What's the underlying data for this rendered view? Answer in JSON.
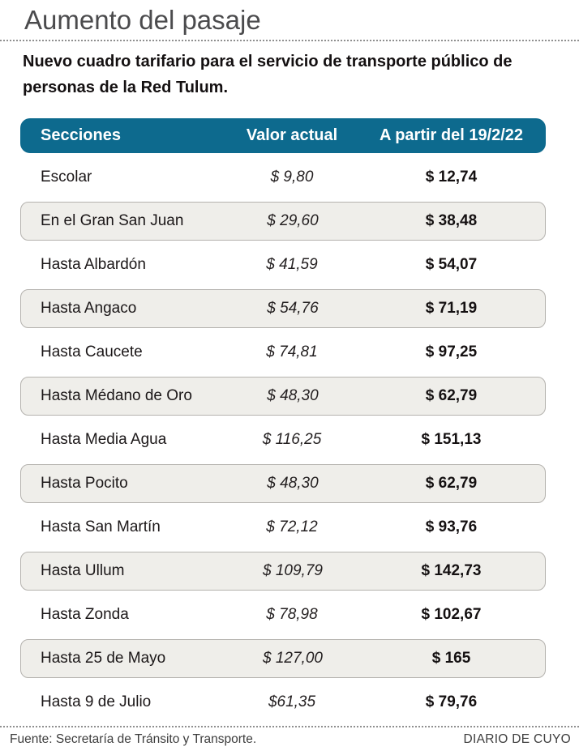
{
  "title": "Aumento del pasaje",
  "subtitle": "Nuevo cuadro tarifario para el servicio de transporte público de personas de la Red Tulum.",
  "colors": {
    "header_bg": "#0d6a8e",
    "alt_row_bg": "#efeeea",
    "alt_row_border": "#b4b2ae",
    "title_color": "#4b4b4d",
    "text_color": "#141011"
  },
  "table": {
    "columns": [
      "Secciones",
      "Valor actual",
      "A partir del 19/2/22"
    ],
    "rows": [
      {
        "seccion": "Escolar",
        "valor_actual": "$ 9,80",
        "a_partir": "$ 12,74"
      },
      {
        "seccion": "En el Gran San Juan",
        "valor_actual": "$ 29,60",
        "a_partir": "$ 38,48"
      },
      {
        "seccion": "Hasta Albardón",
        "valor_actual": "$ 41,59",
        "a_partir": "$ 54,07"
      },
      {
        "seccion": "Hasta Angaco",
        "valor_actual": "$ 54,76",
        "a_partir": "$ 71,19"
      },
      {
        "seccion": "Hasta Caucete",
        "valor_actual": "$ 74,81",
        "a_partir": "$ 97,25"
      },
      {
        "seccion": "Hasta Médano de Oro",
        "valor_actual": "$ 48,30",
        "a_partir": "$ 62,79"
      },
      {
        "seccion": "Hasta Media Agua",
        "valor_actual": "$ 116,25",
        "a_partir": "$ 151,13"
      },
      {
        "seccion": "Hasta Pocito",
        "valor_actual": "$ 48,30",
        "a_partir": "$ 62,79"
      },
      {
        "seccion": "Hasta San Martín",
        "valor_actual": "$ 72,12",
        "a_partir": "$ 93,76"
      },
      {
        "seccion": "Hasta Ullum",
        "valor_actual": "$ 109,79",
        "a_partir": "$ 142,73"
      },
      {
        "seccion": "Hasta Zonda",
        "valor_actual": "$ 78,98",
        "a_partir": "$ 102,67"
      },
      {
        "seccion": "Hasta 25 de Mayo",
        "valor_actual": "$ 127,00",
        "a_partir": "$ 165"
      },
      {
        "seccion": "Hasta 9 de Julio",
        "valor_actual": "$61,35",
        "a_partir": "$ 79,76"
      }
    ]
  },
  "footer": {
    "source": "Fuente:  Secretaría de Tránsito y Transporte.",
    "brand": "DIARIO DE CUYO"
  },
  "chart_data": {
    "type": "table",
    "title": "Aumento del pasaje",
    "subtitle": "Nuevo cuadro tarifario para el servicio de transporte público de personas de la Red Tulum.",
    "columns": [
      "Secciones",
      "Valor actual",
      "A partir del 19/2/22"
    ],
    "categories": [
      "Escolar",
      "En el Gran San Juan",
      "Hasta Albardón",
      "Hasta Angaco",
      "Hasta Caucete",
      "Hasta Médano de Oro",
      "Hasta Media Agua",
      "Hasta Pocito",
      "Hasta San Martín",
      "Hasta Ullum",
      "Hasta Zonda",
      "Hasta 25 de Mayo",
      "Hasta 9 de Julio"
    ],
    "series": [
      {
        "name": "Valor actual",
        "values": [
          9.8,
          29.6,
          41.59,
          54.76,
          74.81,
          48.3,
          116.25,
          48.3,
          72.12,
          109.79,
          78.98,
          127.0,
          61.35
        ]
      },
      {
        "name": "A partir del 19/2/22",
        "values": [
          12.74,
          38.48,
          54.07,
          71.19,
          97.25,
          62.79,
          151.13,
          62.79,
          93.76,
          142.73,
          102.67,
          165,
          79.76
        ]
      }
    ],
    "unit": "$ (pesos argentinos)",
    "source": "Secretaría de Tránsito y Transporte",
    "publisher": "DIARIO DE CUYO"
  }
}
